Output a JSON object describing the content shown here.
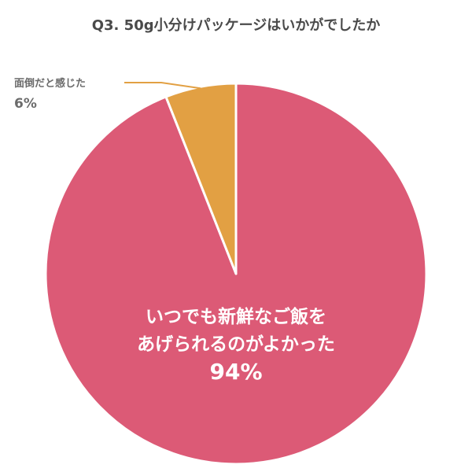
{
  "chart_data": {
    "type": "pie",
    "title": "Q3. 50g小分けパッケージはいかがでしたか",
    "slices": [
      {
        "label_lines": [
          "いつでも新鮮なご飯を",
          "あげられるのがよかった"
        ],
        "value": 94,
        "value_text": "94%",
        "color": "#dc5a76"
      },
      {
        "label_lines": [
          "面倒だと感じた"
        ],
        "value": 6,
        "value_text": "6%",
        "color": "#e2a043"
      }
    ],
    "start_angle_deg": 0,
    "direction": "clockwise",
    "legend": "none",
    "leader_line_color": "#e2a043"
  }
}
